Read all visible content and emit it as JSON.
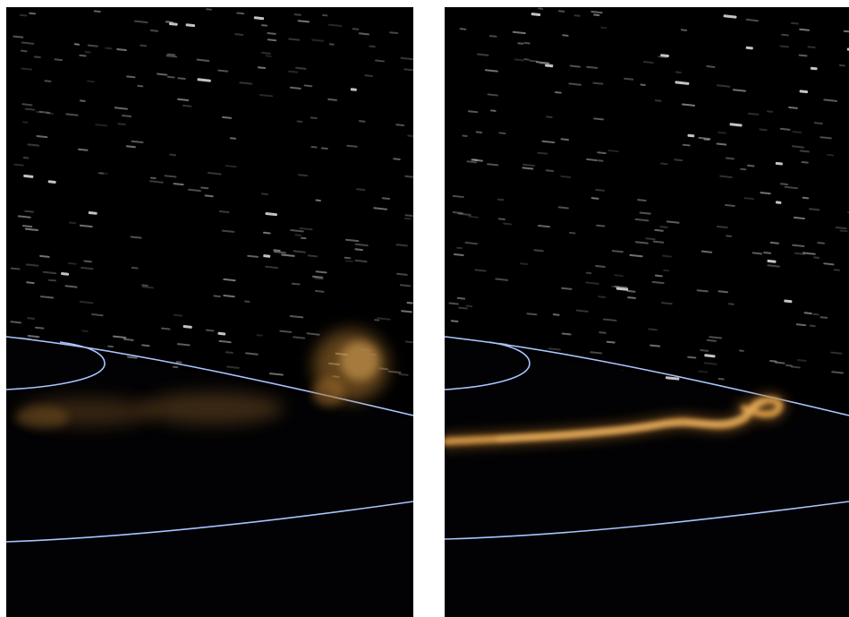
{
  "figure": {
    "panels": [
      {
        "id": "left",
        "plume": "diffuse-scattered-glow"
      },
      {
        "id": "right",
        "plume": "compact-streamer"
      }
    ],
    "colors": {
      "background": "#ffffff",
      "space": "#000000",
      "star": "#cfcfcf",
      "orbit_line": "#a9c4ff",
      "limb_glow": "#ffffff",
      "plume": "#d89a45"
    }
  }
}
